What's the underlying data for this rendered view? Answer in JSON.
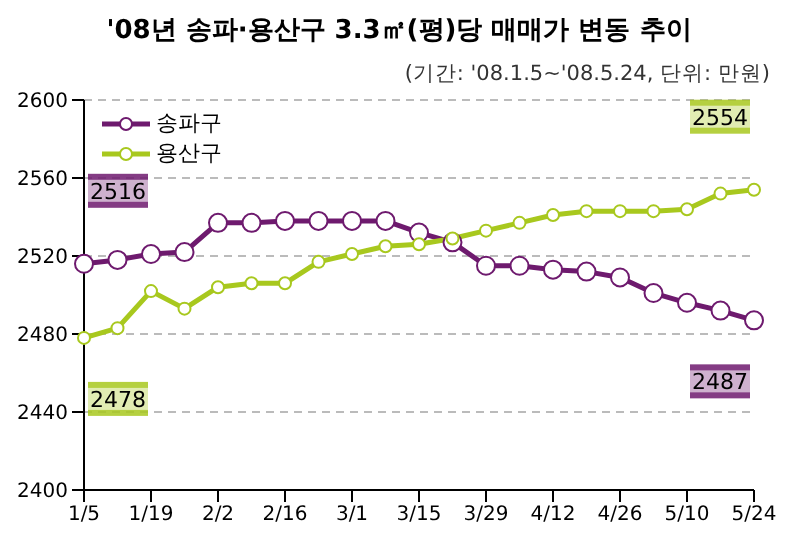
{
  "chart_data": {
    "type": "line",
    "title": "'08년 송파·용산구 3.3㎡(평)당 매매가 변동 추이",
    "subtitle": "(기간: '08.1.5~'08.5.24, 단위: 만원)",
    "categories": [
      "1/5",
      null,
      "1/19",
      null,
      "2/2",
      null,
      "2/16",
      null,
      "3/1",
      null,
      "3/15",
      null,
      "3/29",
      null,
      "4/12",
      null,
      "4/26",
      null,
      "5/10",
      null,
      "5/24"
    ],
    "series": [
      {
        "name": "송파구",
        "color": "#6e1a6e",
        "values": [
          2516,
          2518,
          2521,
          2522,
          2537,
          2537,
          2538,
          2538,
          2538,
          2538,
          2532,
          2527,
          2515,
          2515,
          2513,
          2512,
          2509,
          2501,
          2496,
          2492,
          2487
        ]
      },
      {
        "name": "용산구",
        "color": "#a8c81e",
        "values": [
          2478,
          2483,
          2502,
          2493,
          2504,
          2506,
          2506,
          2517,
          2521,
          2525,
          2526,
          2529,
          2533,
          2537,
          2541,
          2543,
          2543,
          2543,
          2544,
          2552,
          2554
        ]
      }
    ],
    "annotations": [
      {
        "text": "2516",
        "x": "1/5",
        "y": 2516
      },
      {
        "text": "2478",
        "x": "1/5",
        "y": 2478
      },
      {
        "text": "2554",
        "x": "5/24",
        "y": 2554
      },
      {
        "text": "2487",
        "x": "5/24",
        "y": 2487
      }
    ],
    "ylim": [
      2400,
      2600
    ],
    "yticks": [
      2400,
      2440,
      2480,
      2520,
      2560,
      2600
    ],
    "grid": "y",
    "legend": "top left",
    "marker": "circle",
    "line_style": "solid"
  }
}
